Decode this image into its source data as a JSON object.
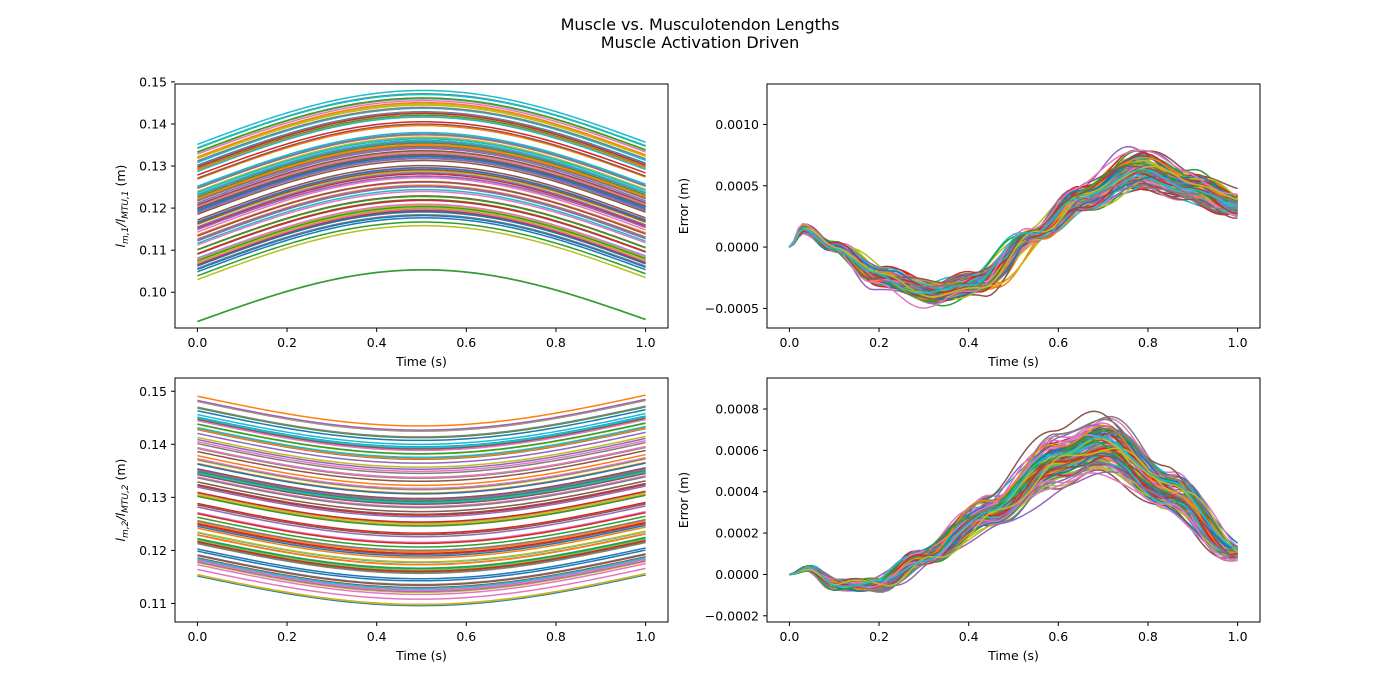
{
  "figure": {
    "title_line1": "Muscle vs. Musculotendon Lengths",
    "title_line2": "Muscle Activation Driven"
  },
  "palette": [
    "#1f77b4",
    "#ff7f0e",
    "#2ca02c",
    "#d62728",
    "#9467bd",
    "#8c564b",
    "#e377c2",
    "#7f7f7f",
    "#bcbd22",
    "#17becf"
  ],
  "chart_data": [
    {
      "type": "line",
      "panel": "top-left",
      "xlabel": "Time (s)",
      "ylabel_main": "l",
      "ylabel_sub1": "m,1",
      "ylabel_mid": "/l",
      "ylabel_sub2": "MTU,1",
      "ylabel_unit": " (m)",
      "xlim": [
        -0.05,
        1.05
      ],
      "ylim": [
        0.0915,
        0.1495
      ],
      "xticks": [
        "0.0",
        "0.2",
        "0.4",
        "0.6",
        "0.8",
        "1.0"
      ],
      "yticks": [
        "0.10",
        "0.11",
        "0.12",
        "0.13",
        "0.14",
        "0.15"
      ],
      "num_series": 100,
      "curve_shape": "sine-hump",
      "start_range": [
        0.1022,
        0.1352
      ],
      "amplitude_range": [
        0.0124,
        0.0127
      ],
      "end_offset": 0.0005,
      "outliers": [
        {
          "start": 0.093,
          "peak": 0.1053,
          "end": 0.0935
        }
      ],
      "grid": false,
      "legend": "none"
    },
    {
      "type": "line",
      "panel": "top-right",
      "xlabel": "Time (s)",
      "ylabel": "Error (m)",
      "xlim": [
        -0.05,
        1.05
      ],
      "ylim": [
        -0.00066,
        0.00133
      ],
      "xticks": [
        "0.0",
        "0.2",
        "0.4",
        "0.6",
        "0.8",
        "1.0"
      ],
      "yticks": [
        "−0.0005",
        "0.0000",
        "0.0005",
        "0.0010"
      ],
      "num_series": 100,
      "curve_shape": "error-wave",
      "keypoints_x": [
        0.0,
        0.03,
        0.1,
        0.2,
        0.33,
        0.42,
        0.55,
        0.65,
        0.78,
        0.9,
        1.0
      ],
      "keypoints_y": [
        0.0,
        0.00015,
        0.0,
        -0.00025,
        -0.00038,
        -0.0003,
        0.0001,
        0.0004,
        0.00065,
        0.0005,
        0.00035
      ],
      "grid": false,
      "legend": "none"
    },
    {
      "type": "line",
      "panel": "bottom-left",
      "xlabel": "Time (s)",
      "ylabel_main": "l",
      "ylabel_sub1": "m,2",
      "ylabel_mid": "/l",
      "ylabel_sub2": "MTU,2",
      "ylabel_unit": " (m)",
      "xlim": [
        -0.05,
        1.05
      ],
      "ylim": [
        0.1065,
        0.1525
      ],
      "xticks": [
        "0.0",
        "0.2",
        "0.4",
        "0.6",
        "0.8",
        "1.0"
      ],
      "yticks": [
        "0.11",
        "0.12",
        "0.13",
        "0.14",
        "0.15"
      ],
      "num_series": 100,
      "curve_shape": "sine-dip",
      "start_range": [
        0.1147,
        0.1493
      ],
      "amplitude_range": [
        -0.0057,
        -0.0057
      ],
      "end_offset": 0.0002,
      "outliers": [],
      "grid": false,
      "legend": "none"
    },
    {
      "type": "line",
      "panel": "bottom-right",
      "xlabel": "Time (s)",
      "ylabel": "Error (m)",
      "xlim": [
        -0.05,
        1.05
      ],
      "ylim": [
        -0.00023,
        0.00095
      ],
      "xticks": [
        "0.0",
        "0.2",
        "0.4",
        "0.6",
        "0.8",
        "1.0"
      ],
      "yticks": [
        "−0.0002",
        "0.0000",
        "0.0002",
        "0.0004",
        "0.0006",
        "0.0008"
      ],
      "num_series": 100,
      "curve_shape": "error-wave",
      "keypoints_x": [
        0.0,
        0.04,
        0.1,
        0.2,
        0.3,
        0.45,
        0.6,
        0.7,
        0.85,
        1.0
      ],
      "keypoints_y": [
        0.0,
        3e-05,
        -5e-05,
        -5e-05,
        8e-05,
        0.0003,
        0.00055,
        0.00062,
        0.0004,
        0.0001
      ],
      "grid": false,
      "legend": "none"
    }
  ]
}
